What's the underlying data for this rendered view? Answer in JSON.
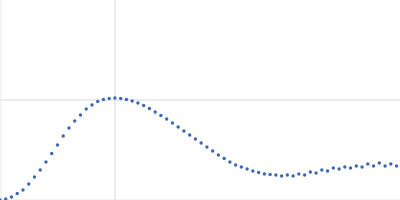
{
  "chart_data": {
    "type": "scatter",
    "color": "#3a66b5",
    "marker": "circle",
    "grid": true,
    "tick_labels": false,
    "xlim": [
      0,
      3.48
    ],
    "ylim": [
      0,
      2
    ],
    "xticks": [
      1
    ],
    "yticks": [
      1
    ],
    "x": [
      0,
      0.05,
      0.1,
      0.15,
      0.2,
      0.25,
      0.3,
      0.35,
      0.4,
      0.45,
      0.5,
      0.55,
      0.6,
      0.65,
      0.7,
      0.75,
      0.8,
      0.85,
      0.9,
      0.95,
      1,
      1.05,
      1.1,
      1.15,
      1.2,
      1.25,
      1.3,
      1.35,
      1.4,
      1.45,
      1.5,
      1.55,
      1.6,
      1.65,
      1.7,
      1.75,
      1.8,
      1.85,
      1.9,
      1.95,
      2,
      2.05,
      2.1,
      2.15,
      2.2,
      2.25,
      2.3,
      2.35,
      2.4,
      2.45,
      2.5,
      2.55,
      2.6,
      2.65,
      2.7,
      2.75,
      2.8,
      2.85,
      2.9,
      2.95,
      3,
      3.05,
      3.1,
      3.15,
      3.2,
      3.25,
      3.3,
      3.35,
      3.4,
      3.45
    ],
    "values": [
      0,
      0.01,
      0.03,
      0.065,
      0.1,
      0.16,
      0.23,
      0.3,
      0.38,
      0.465,
      0.55,
      0.64,
      0.72,
      0.79,
      0.85,
      0.91,
      0.95,
      0.985,
      1.005,
      1.015,
      1.02,
      1.015,
      1.005,
      0.99,
      0.97,
      0.945,
      0.915,
      0.88,
      0.845,
      0.81,
      0.77,
      0.73,
      0.69,
      0.65,
      0.61,
      0.57,
      0.53,
      0.49,
      0.45,
      0.415,
      0.38,
      0.35,
      0.33,
      0.31,
      0.29,
      0.275,
      0.26,
      0.255,
      0.25,
      0.24,
      0.25,
      0.24,
      0.26,
      0.25,
      0.28,
      0.27,
      0.3,
      0.29,
      0.32,
      0.31,
      0.33,
      0.32,
      0.34,
      0.33,
      0.36,
      0.34,
      0.37,
      0.34,
      0.36,
      0.34
    ]
  }
}
